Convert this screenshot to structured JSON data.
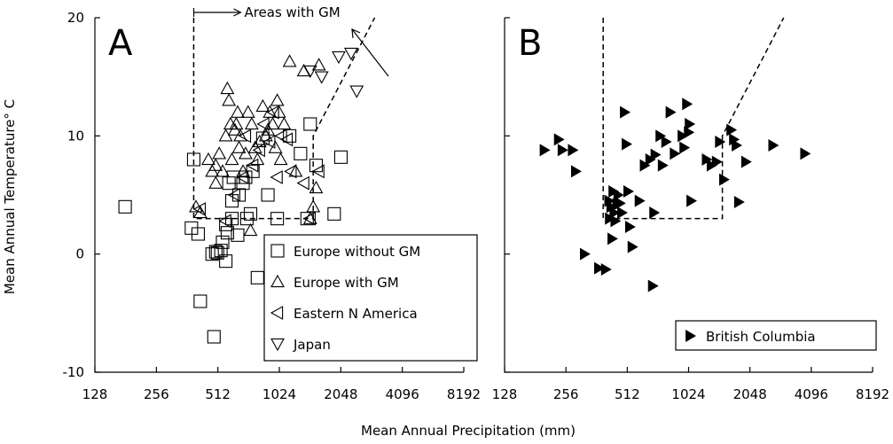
{
  "chart_data": [
    {
      "type": "scatter",
      "panel_label": "A",
      "xlabel": "Mean Annual Precipitation (mm)",
      "ylabel": "Mean Annual Temperature° C",
      "x_scale": "log2",
      "xlim": [
        128,
        8192
      ],
      "ylim": [
        -10,
        20
      ],
      "x_ticks": [
        "128",
        "256",
        "512",
        "1024",
        "2048",
        "4096",
        "8192"
      ],
      "y_ticks": [
        "-10",
        "0",
        "10",
        "20"
      ],
      "annotation": "Areas with GM",
      "boundary": [
        [
          390,
          20
        ],
        [
          390,
          3
        ],
        [
          1500,
          3
        ],
        [
          1500,
          10
        ],
        [
          3000,
          20
        ]
      ],
      "legend_position": "lower-right",
      "series": [
        {
          "name": "Europe without GM",
          "marker": "square",
          "points": [
            [
              180,
              4
            ],
            [
              380,
              2.2
            ],
            [
              390,
              8
            ],
            [
              410,
              1.7
            ],
            [
              420,
              -4
            ],
            [
              480,
              0
            ],
            [
              490,
              -7
            ],
            [
              500,
              0.2
            ],
            [
              510,
              0.1
            ],
            [
              530,
              0.3
            ],
            [
              540,
              1
            ],
            [
              560,
              -0.6
            ],
            [
              560,
              2.5
            ],
            [
              570,
              1.8
            ],
            [
              580,
              6
            ],
            [
              600,
              3
            ],
            [
              600,
              4.5
            ],
            [
              610,
              6.5
            ],
            [
              640,
              1.6
            ],
            [
              650,
              5
            ],
            [
              680,
              6
            ],
            [
              700,
              6.5
            ],
            [
              710,
              3
            ],
            [
              740,
              3.4
            ],
            [
              760,
              7
            ],
            [
              800,
              -2
            ],
            [
              850,
              9.8
            ],
            [
              900,
              5
            ],
            [
              1000,
              3
            ],
            [
              1150,
              10
            ],
            [
              1300,
              8.5
            ],
            [
              1400,
              3
            ],
            [
              1450,
              11
            ],
            [
              1550,
              7.5
            ],
            [
              1900,
              3.4
            ],
            [
              2050,
              8.2
            ]
          ]
        },
        {
          "name": "Europe with GM",
          "marker": "triangle-up",
          "points": [
            [
              400,
              4
            ],
            [
              420,
              3.5
            ],
            [
              460,
              8
            ],
            [
              480,
              7
            ],
            [
              500,
              7.5
            ],
            [
              500,
              6
            ],
            [
              520,
              8.5
            ],
            [
              540,
              7
            ],
            [
              560,
              10
            ],
            [
              570,
              14
            ],
            [
              580,
              13
            ],
            [
              590,
              11
            ],
            [
              600,
              8
            ],
            [
              620,
              10.5
            ],
            [
              630,
              11
            ],
            [
              640,
              12
            ],
            [
              650,
              9
            ],
            [
              660,
              10
            ],
            [
              680,
              7
            ],
            [
              700,
              8.5
            ],
            [
              720,
              12
            ],
            [
              740,
              2
            ],
            [
              750,
              11
            ],
            [
              780,
              9
            ],
            [
              800,
              8
            ],
            [
              820,
              9.5
            ],
            [
              850,
              12.5
            ],
            [
              880,
              10
            ],
            [
              900,
              10.5
            ],
            [
              920,
              12
            ],
            [
              950,
              11
            ],
            [
              980,
              9
            ],
            [
              1000,
              13
            ],
            [
              1020,
              12
            ],
            [
              1040,
              8
            ],
            [
              1080,
              11
            ],
            [
              1150,
              16.3
            ],
            [
              1230,
              7
            ],
            [
              1350,
              15.5
            ],
            [
              1450,
              3
            ],
            [
              1500,
              4
            ],
            [
              1550,
              5.6
            ],
            [
              1600,
              16
            ]
          ]
        },
        {
          "name": "Eastern N America",
          "marker": "triangle-left",
          "points": [
            [
              420,
              3.8
            ],
            [
              560,
              2.8
            ],
            [
              620,
              5
            ],
            [
              680,
              6.5
            ],
            [
              700,
              10
            ],
            [
              760,
              7.5
            ],
            [
              820,
              8.8
            ],
            [
              860,
              11
            ],
            [
              920,
              9.5
            ],
            [
              960,
              12
            ],
            [
              1000,
              6.5
            ],
            [
              1050,
              10
            ],
            [
              1120,
              9.7
            ],
            [
              1170,
              7
            ],
            [
              1350,
              6
            ],
            [
              1450,
              3
            ],
            [
              1600,
              7
            ]
          ]
        },
        {
          "name": "Japan",
          "marker": "triangle-down",
          "points": [
            [
              1450,
              15.5
            ],
            [
              1650,
              15
            ],
            [
              2000,
              16.7
            ],
            [
              2300,
              17
            ],
            [
              2450,
              13.8
            ]
          ]
        }
      ]
    },
    {
      "type": "scatter",
      "panel_label": "B",
      "xlabel": "Mean Annual Precipitation (mm)",
      "x_scale": "log2",
      "xlim": [
        128,
        8192
      ],
      "ylim": [
        -10,
        20
      ],
      "x_ticks": [
        "128",
        "256",
        "512",
        "1024",
        "2048",
        "4096",
        "8192"
      ],
      "y_ticks": [
        "-10",
        "0",
        "10",
        "20"
      ],
      "boundary": [
        [
          390,
          20
        ],
        [
          390,
          3
        ],
        [
          1500,
          3
        ],
        [
          1500,
          10
        ],
        [
          3000,
          20
        ]
      ],
      "legend_position": "lower-right",
      "series": [
        {
          "name": "British Columbia",
          "marker": "triangle-right-filled",
          "points": [
            [
              200,
              8.8
            ],
            [
              235,
              9.7
            ],
            [
              245,
              8.8
            ],
            [
              275,
              8.8
            ],
            [
              285,
              7
            ],
            [
              315,
              0
            ],
            [
              370,
              -1.2
            ],
            [
              400,
              -1.3
            ],
            [
              415,
              4.5
            ],
            [
              418,
              3
            ],
            [
              425,
              4
            ],
            [
              430,
              1.3
            ],
            [
              435,
              5.3
            ],
            [
              440,
              3.5
            ],
            [
              445,
              2.8
            ],
            [
              455,
              4.2
            ],
            [
              460,
              5
            ],
            [
              470,
              4.3
            ],
            [
              480,
              3.5
            ],
            [
              495,
              12
            ],
            [
              505,
              9.3
            ],
            [
              515,
              5.3
            ],
            [
              525,
              2.3
            ],
            [
              540,
              0.6
            ],
            [
              585,
              4.5
            ],
            [
              620,
              7.5
            ],
            [
              660,
              8
            ],
            [
              680,
              -2.7
            ],
            [
              690,
              3.5
            ],
            [
              700,
              8.4
            ],
            [
              740,
              10
            ],
            [
              760,
              7.5
            ],
            [
              790,
              9.5
            ],
            [
              830,
              12
            ],
            [
              870,
              8.5
            ],
            [
              950,
              10
            ],
            [
              970,
              9
            ],
            [
              1000,
              12.7
            ],
            [
              1020,
              10.3
            ],
            [
              1030,
              11
            ],
            [
              1050,
              4.5
            ],
            [
              1250,
              8
            ],
            [
              1320,
              7.5
            ],
            [
              1400,
              7.8
            ],
            [
              1450,
              9.5
            ],
            [
              1520,
              6.3
            ],
            [
              1650,
              10.5
            ],
            [
              1700,
              9.7
            ],
            [
              1750,
              9.2
            ],
            [
              1800,
              4.4
            ],
            [
              1950,
              7.8
            ],
            [
              2650,
              9.2
            ],
            [
              3800,
              8.5
            ]
          ]
        }
      ]
    }
  ]
}
